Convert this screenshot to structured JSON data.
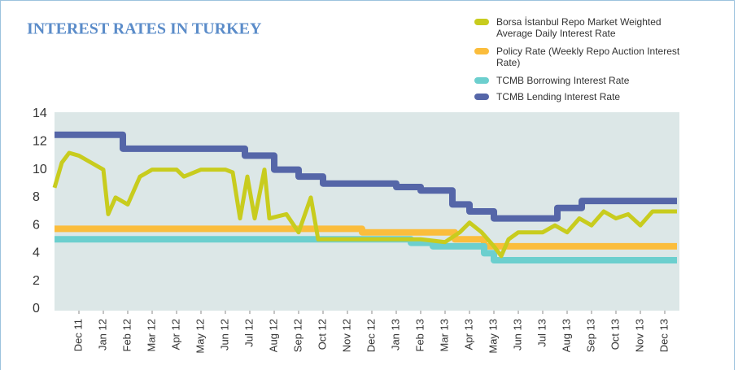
{
  "chart_data": {
    "type": "line",
    "title": "INTEREST RATES IN TURKEY",
    "xlim": [
      -1,
      24.5
    ],
    "xticks": [
      {
        "value": 0,
        "label": "Dec 11"
      },
      {
        "value": 1,
        "label": "Jan 12"
      },
      {
        "value": 2,
        "label": "Feb 12"
      },
      {
        "value": 3,
        "label": "Mar 12"
      },
      {
        "value": 4,
        "label": "Apr 12"
      },
      {
        "value": 5,
        "label": "May 12"
      },
      {
        "value": 6,
        "label": "Jun 12"
      },
      {
        "value": 7,
        "label": "Jul 12"
      },
      {
        "value": 8,
        "label": "Aug 12"
      },
      {
        "value": 9,
        "label": "Sep 12"
      },
      {
        "value": 10,
        "label": "Oct 12"
      },
      {
        "value": 11,
        "label": "Nov 12"
      },
      {
        "value": 12,
        "label": "Dec 12"
      },
      {
        "value": 13,
        "label": "Jan 13"
      },
      {
        "value": 14,
        "label": "Feb 13"
      },
      {
        "value": 15,
        "label": "Mar 13"
      },
      {
        "value": 16,
        "label": "Apr 13"
      },
      {
        "value": 17,
        "label": "May 13"
      },
      {
        "value": 18,
        "label": "Jun 13"
      },
      {
        "value": 19,
        "label": "Jul 13"
      },
      {
        "value": 20,
        "label": "Aug 13"
      },
      {
        "value": 21,
        "label": "Sep 13"
      },
      {
        "value": 22,
        "label": "Oct 13"
      },
      {
        "value": 23,
        "label": "Nov 13"
      },
      {
        "value": 24,
        "label": "Dec 13"
      }
    ],
    "ylim": [
      0,
      14
    ],
    "yticks": [
      0,
      2,
      4,
      6,
      8,
      10,
      12,
      14
    ],
    "series": [
      {
        "name": "Borsa İstanbul Repo Market Weighted Average Daily Interest Rate",
        "color": "#c8cc1e",
        "width": 5,
        "x": [
          -1,
          -0.7,
          -0.4,
          0,
          0.5,
          1,
          1.2,
          1.5,
          2,
          2.5,
          3,
          4,
          4.3,
          5,
          6,
          6.3,
          6.6,
          6.9,
          7.2,
          7.6,
          7.8,
          8.5,
          9,
          9.5,
          9.8,
          11,
          14,
          15,
          15.6,
          16,
          16.5,
          17,
          17.3,
          17.6,
          18,
          19,
          19.5,
          20,
          20.5,
          21,
          21.5,
          22,
          22.5,
          23,
          23.5,
          24.5
        ],
        "values": [
          8.7,
          10.5,
          11.2,
          11,
          10.5,
          10,
          6.8,
          8,
          7.5,
          9.5,
          10,
          10,
          9.5,
          10,
          10,
          9.8,
          6.5,
          9.5,
          6.5,
          10,
          6.5,
          6.8,
          5.5,
          8,
          5,
          5,
          5,
          4.8,
          5.5,
          6.2,
          5.5,
          4.5,
          3.8,
          5,
          5.5,
          5.5,
          6,
          5.5,
          6.5,
          6,
          7,
          6.5,
          6.8,
          6,
          7,
          7
        ]
      },
      {
        "name": "Policy Rate (Weekly Repo Auction Interest Rate)",
        "color": "#fbbd3c",
        "width": 8,
        "x": [
          -1,
          11.6,
          11.6,
          15.4,
          15.4,
          16.6,
          16.6,
          24.5
        ],
        "values": [
          5.75,
          5.75,
          5.5,
          5.5,
          5,
          5,
          4.5,
          4.5
        ]
      },
      {
        "name": "TCMB Borrowing Interest Rate",
        "color": "#6ccfce",
        "width": 8,
        "x": [
          -1,
          13.6,
          13.6,
          14.5,
          14.5,
          16.6,
          16.6,
          17.0,
          17.0,
          24.5
        ],
        "values": [
          5,
          5,
          4.75,
          4.75,
          4.5,
          4.5,
          4,
          4,
          3.5,
          3.5
        ]
      },
      {
        "name": "TCMB Lending Interest Rate",
        "color": "#5566a8",
        "width": 8,
        "x": [
          -1,
          1.8,
          1.8,
          6.8,
          6.8,
          8.0,
          8.0,
          9.0,
          9.0,
          10.0,
          10.0,
          13.0,
          13.0,
          14.0,
          14.0,
          15.3,
          15.3,
          16.0,
          16.0,
          17.0,
          17.0,
          19.6,
          19.6,
          20.6,
          20.6,
          24.5
        ],
        "values": [
          12.5,
          12.5,
          11.5,
          11.5,
          11,
          11,
          10,
          10,
          9.5,
          9.5,
          9,
          9,
          8.75,
          8.75,
          8.5,
          8.5,
          7.5,
          7.5,
          7,
          7,
          6.5,
          6.5,
          7.25,
          7.25,
          7.75,
          7.75
        ]
      }
    ]
  }
}
